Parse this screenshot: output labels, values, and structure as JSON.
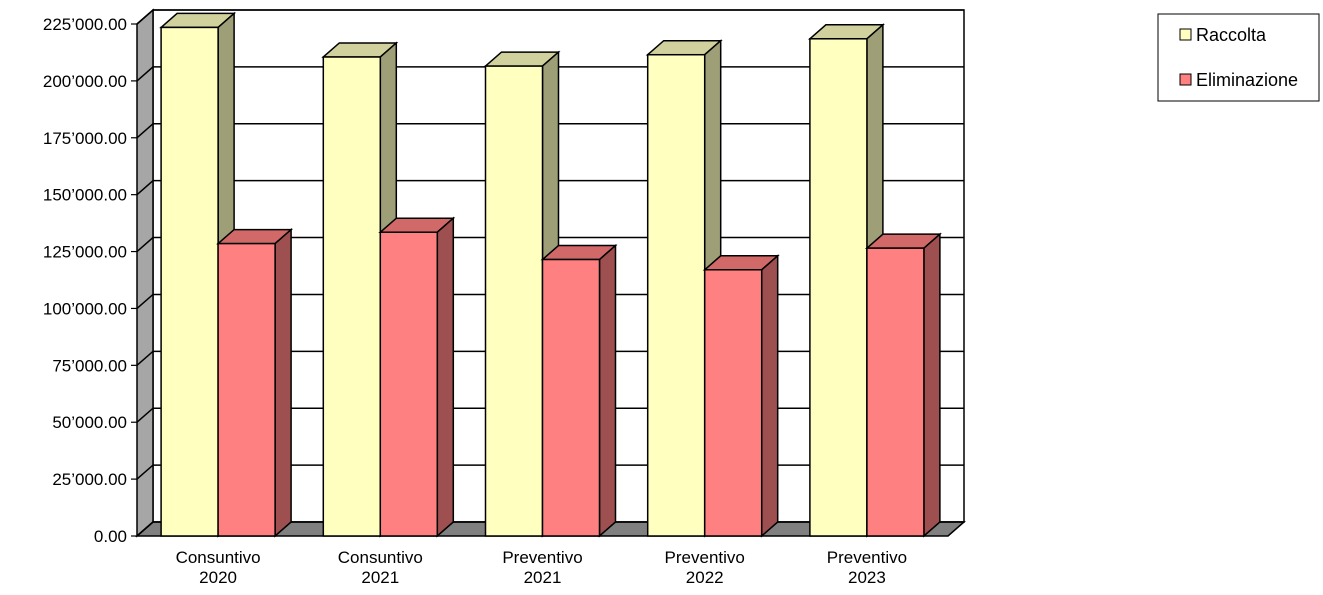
{
  "chart_data": {
    "type": "bar",
    "categories": [
      [
        "Consuntivo",
        "2020"
      ],
      [
        "Consuntivo",
        "2021"
      ],
      [
        "Preventivo",
        "2021"
      ],
      [
        "Preventivo",
        "2022"
      ],
      [
        "Preventivo",
        "2023"
      ]
    ],
    "series": [
      {
        "name": "Raccolta",
        "values": [
          223500,
          210500,
          206500,
          211500,
          218500
        ]
      },
      {
        "name": "Eliminazione",
        "values": [
          128500,
          133500,
          121500,
          117000,
          126500
        ]
      }
    ],
    "ylim": [
      0,
      225000
    ],
    "yticks": [
      0,
      25000,
      50000,
      75000,
      100000,
      125000,
      150000,
      175000,
      200000,
      225000
    ],
    "ytick_labels": [
      "0.00",
      "25’000.00",
      "50’000.00",
      "75’000.00",
      "100’000.00",
      "125’000.00",
      "150’000.00",
      "175’000.00",
      "200’000.00",
      "225’000.00"
    ],
    "grid": true,
    "legend_position": "top-right",
    "view": "3d-clustered",
    "colors": {
      "Raccolta": "#ffffc0",
      "Eliminazione": "#ff8080"
    }
  }
}
